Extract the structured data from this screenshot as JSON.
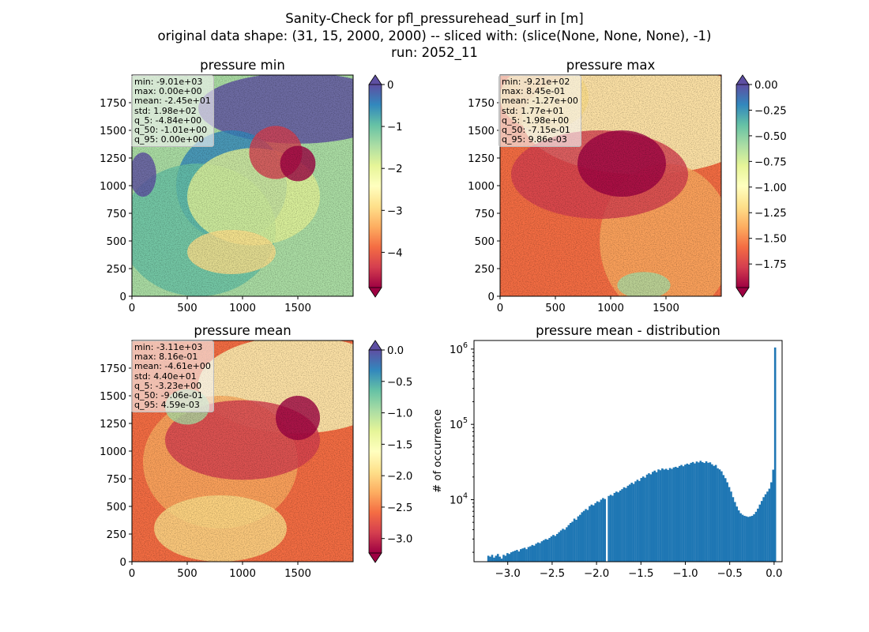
{
  "figure": {
    "title_lines": [
      "Sanity-Check for pfl_pressurehead_surf in [m]",
      "original data shape: (31, 15, 2000, 2000) -- sliced with: (slice(None, None, None), -1)",
      "run: 2052_11"
    ]
  },
  "colors": {
    "spectral": [
      "#9e0142",
      "#d53e4f",
      "#f46d43",
      "#fdae61",
      "#fee08b",
      "#ffffbf",
      "#e6f598",
      "#abdda4",
      "#66c2a5",
      "#3288bd",
      "#5e4fa2"
    ],
    "hist_bar": "#1f77b4"
  },
  "chart_data": [
    {
      "type": "heatmap",
      "title": "pressure min",
      "xlim": [
        0,
        2000
      ],
      "ylim": [
        0,
        2000
      ],
      "xticks": [
        "0",
        "500",
        "1000",
        "1500"
      ],
      "yticks": [
        "0",
        "250",
        "500",
        "750",
        "1000",
        "1250",
        "1500",
        "1750"
      ],
      "colorbar": {
        "range": [
          -4.84,
          0.0
        ],
        "ticks": [
          "0",
          "−1",
          "−2",
          "−3",
          "−4"
        ],
        "tick_values": [
          0,
          -1,
          -2,
          -3,
          -4
        ],
        "extend": "both",
        "cmap": "Spectral"
      },
      "stats": [
        "min: -9.01e+03",
        "max: 0.00e+00",
        "mean: -2.45e+01",
        "std: 1.98e+02",
        "q_5: -4.84e+00",
        "q_50: -1.01e+00",
        "q_95: 0.00e+00"
      ]
    },
    {
      "type": "heatmap",
      "title": "pressure max",
      "xlim": [
        0,
        2000
      ],
      "ylim": [
        0,
        2000
      ],
      "xticks": [
        "0",
        "500",
        "1000",
        "1500"
      ],
      "yticks": [
        "0",
        "250",
        "500",
        "750",
        "1000",
        "1250",
        "1500",
        "1750"
      ],
      "colorbar": {
        "range": [
          -1.98,
          0.0
        ],
        "ticks": [
          "0.00",
          "−0.25",
          "−0.50",
          "−0.75",
          "−1.00",
          "−1.25",
          "−1.50",
          "−1.75"
        ],
        "tick_values": [
          0,
          -0.25,
          -0.5,
          -0.75,
          -1.0,
          -1.25,
          -1.5,
          -1.75
        ],
        "extend": "both",
        "cmap": "Spectral"
      },
      "stats": [
        "min: -9.21e+02",
        "max: 8.45e-01",
        "mean: -1.27e+00",
        "std: 1.77e+01",
        "q_5: -1.98e+00",
        "q_50: -7.15e-01",
        "q_95: 9.86e-03"
      ]
    },
    {
      "type": "heatmap",
      "title": "pressure mean",
      "xlim": [
        0,
        2000
      ],
      "ylim": [
        0,
        2000
      ],
      "xticks": [
        "0",
        "500",
        "1000",
        "1500"
      ],
      "yticks": [
        "0",
        "250",
        "500",
        "750",
        "1000",
        "1250",
        "1500",
        "1750"
      ],
      "colorbar": {
        "range": [
          -3.23,
          0.0
        ],
        "ticks": [
          "0.0",
          "−0.5",
          "−1.0",
          "−1.5",
          "−2.0",
          "−2.5",
          "−3.0"
        ],
        "tick_values": [
          0,
          -0.5,
          -1.0,
          -1.5,
          -2.0,
          -2.5,
          -3.0
        ],
        "extend": "both",
        "cmap": "Spectral"
      },
      "stats": [
        "min: -3.11e+03",
        "max: 8.16e-01",
        "mean: -4.61e+00",
        "std: 4.40e+01",
        "q_5: -3.23e+00",
        "q_50: -9.06e-01",
        "q_95: 4.59e-03"
      ]
    },
    {
      "type": "bar",
      "title": "pressure mean - distribution",
      "ylabel": "# of occurrence",
      "yscale": "log",
      "xlim": [
        -3.38,
        0.09
      ],
      "ylim": [
        1500,
        1300000
      ],
      "xticks": [
        -3.0,
        -2.5,
        -2.0,
        -1.5,
        -1.0,
        -0.5,
        0.0
      ],
      "xtick_labels": [
        "−3.0",
        "−2.5",
        "−2.0",
        "−1.5",
        "−1.0",
        "−0.5",
        "0.0"
      ],
      "yticks": [
        10000,
        100000,
        1000000
      ],
      "ytick_labels": [
        "10^4",
        "10^5",
        "10^6"
      ],
      "bins": {
        "start": -3.23,
        "end": 0.0,
        "count": 150
      },
      "values": [
        1800,
        1750,
        1850,
        1700,
        1800,
        1900,
        1750,
        1650,
        1850,
        1800,
        1950,
        1900,
        2000,
        2050,
        2100,
        2150,
        2050,
        2200,
        2250,
        2300,
        2200,
        2350,
        2400,
        2500,
        2450,
        2600,
        2700,
        2650,
        2800,
        2900,
        3000,
        2950,
        3100,
        3250,
        3400,
        3300,
        3500,
        3700,
        3900,
        4100,
        4000,
        4300,
        4600,
        4900,
        5100,
        5600,
        5400,
        6000,
        6300,
        6800,
        7100,
        7500,
        7300,
        8200,
        8600,
        8400,
        9000,
        9500,
        9300,
        10000,
        10500,
        10200,
        300,
        11200,
        11600,
        11300,
        12300,
        12800,
        12500,
        13200,
        13800,
        14600,
        14300,
        15300,
        15900,
        16800,
        16200,
        17500,
        18400,
        17700,
        19400,
        20300,
        19600,
        21500,
        22400,
        21700,
        23400,
        24300,
        23200,
        25200,
        24600,
        26000,
        25100,
        25700,
        24800,
        26300,
        25600,
        26800,
        27300,
        26600,
        28000,
        28900,
        27800,
        29200,
        30100,
        29300,
        30800,
        31600,
        30300,
        32100,
        31200,
        32800,
        31500,
        30700,
        32300,
        30900,
        31300,
        29500,
        28100,
        28900,
        26100,
        25200,
        23800,
        21200,
        19300,
        17000,
        14700,
        12800,
        10800,
        9300,
        8100,
        7200,
        6600,
        6300,
        6100,
        6000,
        5900,
        6000,
        6100,
        6400,
        6900,
        7600,
        8600,
        9600,
        10800,
        11800,
        12800,
        14000,
        17000,
        25000,
        1050000
      ],
      "gaps": [
        {
          "bin": 62,
          "note": "sharp dip to near zero at about -1.97"
        }
      ]
    }
  ]
}
